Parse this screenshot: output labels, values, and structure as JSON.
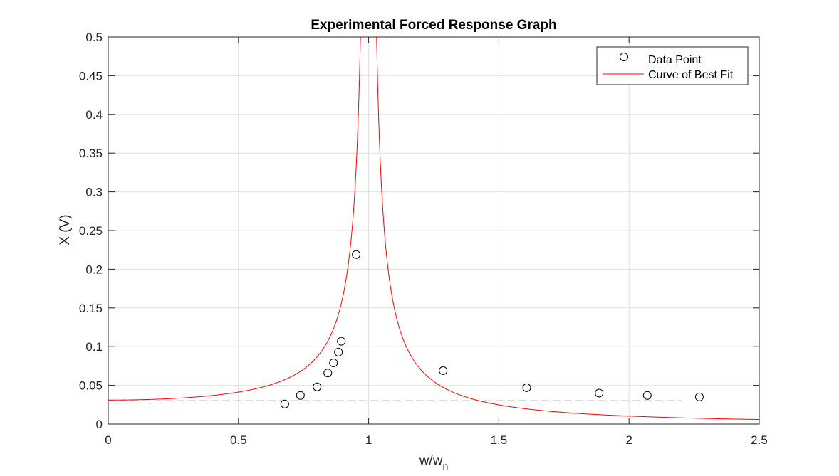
{
  "chart_data": {
    "type": "scatter",
    "title": "Experimental Forced Response Graph",
    "xlabel_main": "w/w",
    "xlabel_sub": "n",
    "ylabel": "X (V)",
    "xlim": [
      0,
      2.5
    ],
    "ylim": [
      0,
      0.5
    ],
    "x_ticks": [
      0,
      0.5,
      1,
      1.5,
      2,
      2.5
    ],
    "y_ticks": [
      0,
      0.05,
      0.1,
      0.15,
      0.2,
      0.25,
      0.3,
      0.35,
      0.4,
      0.45,
      0.5
    ],
    "x_tick_labels": [
      "0",
      "0.5",
      "1",
      "1.5",
      "2",
      "2.5"
    ],
    "y_tick_labels": [
      "0",
      "0.05",
      "0.1",
      "0.15",
      "0.2",
      "0.25",
      "0.3",
      "0.35",
      "0.4",
      "0.45",
      "0.5"
    ],
    "grid": true,
    "legend_position": "top-right",
    "series": [
      {
        "name": "Data Point",
        "kind": "markers",
        "marker": "open-circle",
        "color": "#000000",
        "x": [
          0.678,
          0.738,
          0.802,
          0.843,
          0.865,
          0.884,
          0.895,
          0.952,
          1.286,
          1.607,
          1.885,
          2.07,
          2.27
        ],
        "y": [
          0.026,
          0.037,
          0.048,
          0.066,
          0.079,
          0.093,
          0.107,
          0.219,
          0.069,
          0.047,
          0.04,
          0.037,
          0.035
        ]
      },
      {
        "name": "Curve of Best Fit",
        "kind": "line",
        "color": "#ff0000",
        "model": "X = 0.031 / |1 - (w/wn)^2|",
        "amplitude": 0.031,
        "x_range": [
          0,
          2.5
        ]
      },
      {
        "name": "",
        "kind": "dashed-reference",
        "color": "#000000",
        "x_range": [
          0.0,
          2.2
        ],
        "y": 0.03
      }
    ]
  }
}
